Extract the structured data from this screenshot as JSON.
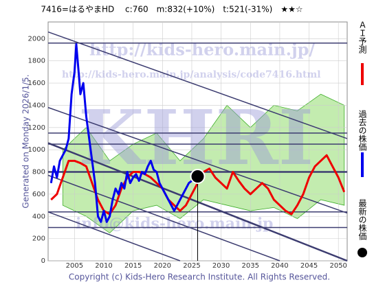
{
  "chart_data": {
    "type": "line",
    "title": "7416=はるやまHD　 c:760　m:832(+10%)　t:521(-31%)　★★☆",
    "side_label": "Generated on Monday 2026/1/5.",
    "copyright": "Copyright (c) Kids-Hero Research Institute. All Rights Reserved.",
    "watermarks": [
      "http://kids-hero.main.jp/",
      "http://kids-hero.main.jp/analysis/code7416.html",
      "KHRI",
      "info@kids-hero.main.jp"
    ],
    "xlim": [
      2000.5,
      2051.5
    ],
    "ylim": [
      0,
      2150
    ],
    "xticks": [
      2005,
      2010,
      2015,
      2020,
      2025,
      2030,
      2035,
      2040,
      2045,
      2050
    ],
    "yticks": [
      0,
      200,
      400,
      600,
      800,
      1000,
      1200,
      1400,
      1600,
      1800,
      2000
    ],
    "grid": true,
    "band": {
      "color": "#9be07a",
      "x": [
        2003,
        2007,
        2011,
        2015,
        2019,
        2023,
        2027,
        2031,
        2035,
        2039,
        2043,
        2047,
        2051
      ],
      "high": [
        1000,
        1200,
        900,
        1050,
        1150,
        900,
        1100,
        1400,
        1200,
        1400,
        1350,
        1500,
        1400
      ],
      "low": [
        500,
        400,
        250,
        450,
        500,
        380,
        550,
        500,
        450,
        480,
        380,
        550,
        500
      ]
    },
    "trend_lines": [
      [
        [
          2000.5,
          2060
        ],
        [
          2051.5,
          1100
        ]
      ],
      [
        [
          2000.5,
          1380
        ],
        [
          2051.5,
          430
        ]
      ],
      [
        [
          2000.5,
          1060
        ],
        [
          2051.5,
          0
        ]
      ],
      [
        [
          2000.5,
          770
        ],
        [
          2040,
          0
        ]
      ],
      [
        [
          2000.5,
          440
        ],
        [
          2023,
          0
        ]
      ]
    ],
    "levels": [
      1960,
      1150,
      1050,
      800,
      440,
      300
    ],
    "series": [
      {
        "name": "ＡＩ予測",
        "color": "#ee0000",
        "x": [
          2001,
          2002,
          2003,
          2004,
          2005,
          2006,
          2007,
          2008,
          2009,
          2010,
          2011,
          2012,
          2013,
          2014,
          2015,
          2016,
          2017,
          2018,
          2019,
          2020,
          2021,
          2022,
          2023,
          2024,
          2025,
          2026,
          2027,
          2028,
          2029,
          2030,
          2031,
          2032,
          2033,
          2034,
          2035,
          2036,
          2037,
          2038,
          2039,
          2040,
          2041,
          2042,
          2043,
          2044,
          2045,
          2046,
          2047,
          2048,
          2049,
          2050,
          2051
        ],
        "values": [
          550,
          600,
          750,
          900,
          900,
          880,
          850,
          700,
          550,
          450,
          420,
          500,
          650,
          750,
          800,
          800,
          780,
          750,
          700,
          650,
          550,
          500,
          450,
          500,
          600,
          700,
          800,
          830,
          750,
          700,
          650,
          800,
          720,
          650,
          600,
          650,
          700,
          650,
          550,
          500,
          450,
          420,
          500,
          600,
          750,
          850,
          900,
          950,
          850,
          750,
          620
        ]
      },
      {
        "name": "過去の株価",
        "color": "#0000ee",
        "x": [
          2001,
          2001.5,
          2002,
          2002.5,
          2003,
          2003.5,
          2004,
          2004.5,
          2005,
          2005.3,
          2005.7,
          2006,
          2006.5,
          2007,
          2007.5,
          2008,
          2008.5,
          2009,
          2009.5,
          2010,
          2010.5,
          2011,
          2011.5,
          2012,
          2012.5,
          2013,
          2013.5,
          2014,
          2014.5,
          2015,
          2015.5,
          2016,
          2016.5,
          2017,
          2017.5,
          2018,
          2018.5,
          2019,
          2019.5,
          2020,
          2020.5,
          2021,
          2021.5,
          2022,
          2022.5,
          2023,
          2023.5,
          2024,
          2024.5,
          2025,
          2025.5,
          2026
        ],
        "values": [
          700,
          850,
          750,
          900,
          950,
          1000,
          1100,
          1500,
          1700,
          1950,
          1700,
          1500,
          1600,
          1300,
          1100,
          900,
          700,
          400,
          350,
          450,
          350,
          400,
          550,
          650,
          600,
          700,
          650,
          800,
          700,
          750,
          780,
          720,
          800,
          780,
          850,
          900,
          820,
          800,
          700,
          650,
          600,
          550,
          500,
          450,
          500,
          550,
          600,
          650,
          700,
          720,
          750,
          760
        ]
      },
      {
        "name": "最新の株価",
        "color": "#000000",
        "x": [
          2026
        ],
        "values": [
          760
        ]
      }
    ]
  }
}
